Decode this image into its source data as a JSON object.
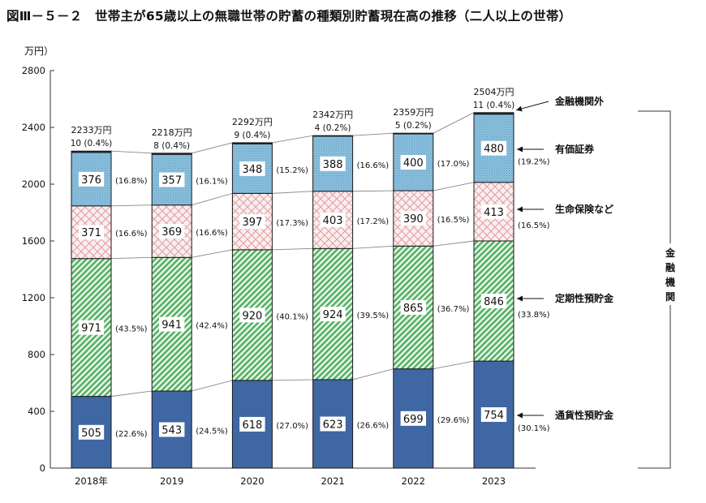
{
  "title": "図Ⅲ－５－２　世帯主が65歳以上の無職世帯の貯蓄の種類別貯蓄現在高の推移（二人以上の世帯）",
  "chart_data": {
    "type": "bar",
    "stacked": true,
    "title": "図Ⅲ－５－２　世帯主が65歳以上の無職世帯の貯蓄の種類別貯蓄現在高の推移（二人以上の世帯）",
    "ylabel": "万円）",
    "ylim": [
      0,
      2800
    ],
    "yticks": [
      "0",
      "400",
      "800",
      "1200",
      "1600",
      "2000",
      "2400",
      "2800"
    ],
    "ytick_values": [
      0,
      400,
      800,
      1200,
      1600,
      2000,
      2400,
      2800
    ],
    "categories": [
      "2018年",
      "2019",
      "2020",
      "2021",
      "2022",
      "2023"
    ],
    "totals": [
      "2233万円",
      "2218万円",
      "2292万円",
      "2342万円",
      "2359万円",
      "2504万円"
    ],
    "series": [
      {
        "name": "通貨性預貯金",
        "color": "#3f67a3",
        "pattern": "solid",
        "values": [
          505,
          543,
          618,
          623,
          699,
          754
        ],
        "labels": [
          "505",
          "543",
          "618",
          "623",
          "699",
          "754"
        ],
        "shares": [
          "(22.6%)",
          "(24.5%)",
          "(27.0%)",
          "(26.6%)",
          "(29.6%)",
          "(30.1%)"
        ]
      },
      {
        "name": "定期性預貯金",
        "color": "#5cb86a",
        "pattern": "diagonal",
        "values": [
          971,
          941,
          920,
          924,
          865,
          846
        ],
        "labels": [
          "971",
          "941",
          "920",
          "924",
          "865",
          "846"
        ],
        "shares": [
          "(43.5%)",
          "(42.4%)",
          "(40.1%)",
          "(39.5%)",
          "(36.7%)",
          "(33.8%)"
        ]
      },
      {
        "name": "生命保険など",
        "color": "#e3a3a8",
        "pattern": "crosshatch",
        "values": [
          371,
          369,
          397,
          403,
          390,
          413
        ],
        "labels": [
          "371",
          "369",
          "397",
          "403",
          "390",
          "413"
        ],
        "shares": [
          "(16.6%)",
          "(16.6%)",
          "(17.3%)",
          "(17.2%)",
          "(16.5%)",
          "(16.5%)"
        ]
      },
      {
        "name": "有価証券",
        "color": "#8fc4e0",
        "pattern": "dots",
        "values": [
          376,
          357,
          348,
          388,
          400,
          480
        ],
        "labels": [
          "376",
          "357",
          "348",
          "388",
          "400",
          "480"
        ],
        "shares": [
          "(16.8%)",
          "(16.1%)",
          "(15.2%)",
          "(16.6%)",
          "(17.0%)",
          "(19.2%)"
        ]
      },
      {
        "name": "金融機関外",
        "color": "#1a2a4a",
        "pattern": "solid",
        "values": [
          10,
          8,
          9,
          4,
          5,
          11
        ],
        "labels": [
          "10 (0.4%)",
          "8 (0.4%)",
          "9 (0.4%)",
          "4 (0.2%)",
          "5 (0.2%)",
          "11 (0.4%)"
        ]
      }
    ],
    "bracket_label": "金融機関",
    "grid": false,
    "legend": "right"
  }
}
